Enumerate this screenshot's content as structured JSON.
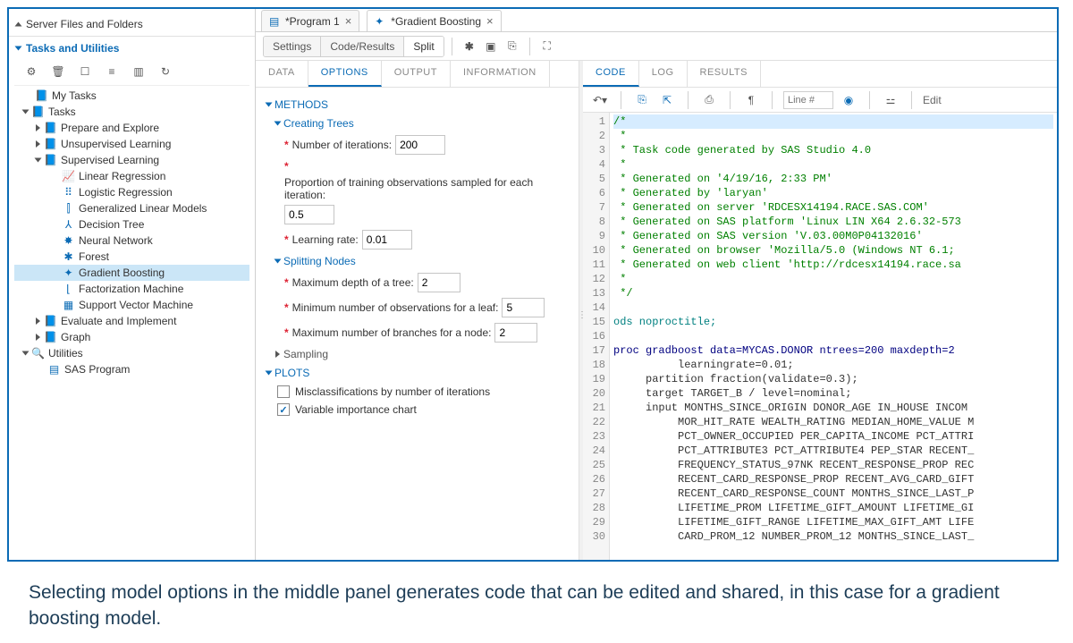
{
  "sidebar": {
    "server_section": "Server Files and Folders",
    "tasks_section": "Tasks and Utilities",
    "toolbar_icons": [
      "settings",
      "trash",
      "properties",
      "list",
      "columns",
      "refresh"
    ],
    "tree": [
      {
        "l": 0,
        "t": "leaf",
        "icon": "folder",
        "label": "My Tasks"
      },
      {
        "l": 0,
        "t": "open",
        "icon": "folder",
        "label": "Tasks"
      },
      {
        "l": 1,
        "t": "closed",
        "icon": "folder",
        "label": "Prepare and Explore"
      },
      {
        "l": 1,
        "t": "closed",
        "icon": "folder",
        "label": "Unsupervised Learning"
      },
      {
        "l": 1,
        "t": "open",
        "icon": "folder",
        "label": "Supervised Learning"
      },
      {
        "l": 2,
        "t": "leaf",
        "icon": "linreg",
        "label": "Linear Regression"
      },
      {
        "l": 2,
        "t": "leaf",
        "icon": "logreg",
        "label": "Logistic Regression"
      },
      {
        "l": 2,
        "t": "leaf",
        "icon": "glm",
        "label": "Generalized Linear Models"
      },
      {
        "l": 2,
        "t": "leaf",
        "icon": "tree",
        "label": "Decision Tree"
      },
      {
        "l": 2,
        "t": "leaf",
        "icon": "nn",
        "label": "Neural Network"
      },
      {
        "l": 2,
        "t": "leaf",
        "icon": "forest",
        "label": "Forest"
      },
      {
        "l": 2,
        "t": "leaf",
        "icon": "gb",
        "label": "Gradient Boosting",
        "selected": true
      },
      {
        "l": 2,
        "t": "leaf",
        "icon": "fm",
        "label": "Factorization Machine"
      },
      {
        "l": 2,
        "t": "leaf",
        "icon": "svm",
        "label": "Support Vector Machine"
      },
      {
        "l": 1,
        "t": "closed",
        "icon": "folder",
        "label": "Evaluate and Implement"
      },
      {
        "l": 1,
        "t": "closed",
        "icon": "folder",
        "label": "Graph"
      },
      {
        "l": 0,
        "t": "open",
        "icon": "util",
        "label": "Utilities"
      },
      {
        "l": 1,
        "t": "leaf",
        "icon": "prog",
        "label": "SAS Program"
      }
    ]
  },
  "tabs": [
    {
      "icon": "prog",
      "label": "*Program 1",
      "active": false
    },
    {
      "icon": "gb",
      "label": "*Gradient Boosting",
      "active": true
    }
  ],
  "view_buttons": {
    "settings": "Settings",
    "code_results": "Code/Results",
    "split": "Split"
  },
  "run_icons": [
    "run",
    "stop",
    "save",
    "export",
    "fullscreen"
  ],
  "options_tabs": [
    "DATA",
    "OPTIONS",
    "OUTPUT",
    "INFORMATION"
  ],
  "options_active": "OPTIONS",
  "methods": {
    "header": "METHODS",
    "creating_trees": {
      "header": "Creating Trees",
      "num_iter": {
        "label": "Number of iterations:",
        "value": "200"
      },
      "prop_train": {
        "label": "Proportion of training observations sampled for each iteration:",
        "value": "0.5"
      },
      "learn_rate": {
        "label": "Learning rate:",
        "value": "0.01"
      }
    },
    "splitting": {
      "header": "Splitting Nodes",
      "max_depth": {
        "label": "Maximum depth of a tree:",
        "value": "2"
      },
      "min_leaf": {
        "label": "Minimum number of observations for a leaf:",
        "value": "5"
      },
      "max_branch": {
        "label": "Maximum number of branches for a node:",
        "value": "2"
      }
    },
    "sampling": {
      "header": "Sampling"
    }
  },
  "plots": {
    "header": "PLOTS",
    "misclass": {
      "label": "Misclassifications by number of iterations",
      "checked": false
    },
    "varimp": {
      "label": "Variable importance chart",
      "checked": true
    }
  },
  "code_tabs": [
    "CODE",
    "LOG",
    "RESULTS"
  ],
  "code_active": "CODE",
  "code_toolbar": {
    "line_ph": "Line #",
    "edit": "Edit"
  },
  "code_lines": [
    {
      "n": 1,
      "type": "comment",
      "txt": "/*",
      "hl": true
    },
    {
      "n": 2,
      "type": "comment",
      "txt": " *"
    },
    {
      "n": 3,
      "type": "comment",
      "txt": " * Task code generated by SAS Studio 4.0"
    },
    {
      "n": 4,
      "type": "comment",
      "txt": " *"
    },
    {
      "n": 5,
      "type": "comment",
      "txt": " * Generated on '4/19/16, 2:33 PM'"
    },
    {
      "n": 6,
      "type": "comment",
      "txt": " * Generated by 'laryan'"
    },
    {
      "n": 7,
      "type": "comment",
      "txt": " * Generated on server 'RDCESX14194.RACE.SAS.COM'"
    },
    {
      "n": 8,
      "type": "comment",
      "txt": " * Generated on SAS platform 'Linux LIN X64 2.6.32-573"
    },
    {
      "n": 9,
      "type": "comment",
      "txt": " * Generated on SAS version 'V.03.00M0P04132016'"
    },
    {
      "n": 10,
      "type": "comment",
      "txt": " * Generated on browser 'Mozilla/5.0 (Windows NT 6.1;"
    },
    {
      "n": 11,
      "type": "comment",
      "txt": " * Generated on web client 'http://rdcesx14194.race.sa"
    },
    {
      "n": 12,
      "type": "comment",
      "txt": " *"
    },
    {
      "n": 13,
      "type": "comment",
      "txt": " */"
    },
    {
      "n": 14,
      "type": "plain",
      "txt": ""
    },
    {
      "n": 15,
      "type": "stmt",
      "txt": "ods noproctitle;"
    },
    {
      "n": 16,
      "type": "plain",
      "txt": ""
    },
    {
      "n": 17,
      "type": "proc",
      "txt": "proc gradboost data=MYCAS.DONOR ntrees=200 maxdepth=2"
    },
    {
      "n": 18,
      "type": "plain",
      "txt": "          learningrate=0.01;"
    },
    {
      "n": 19,
      "type": "plain",
      "txt": "     partition fraction(validate=0.3);"
    },
    {
      "n": 20,
      "type": "plain",
      "txt": "     target TARGET_B / level=nominal;"
    },
    {
      "n": 21,
      "type": "plain",
      "txt": "     input MONTHS_SINCE_ORIGIN DONOR_AGE IN_HOUSE INCOM"
    },
    {
      "n": 22,
      "type": "plain",
      "txt": "          MOR_HIT_RATE WEALTH_RATING MEDIAN_HOME_VALUE M"
    },
    {
      "n": 23,
      "type": "plain",
      "txt": "          PCT_OWNER_OCCUPIED PER_CAPITA_INCOME PCT_ATTRI"
    },
    {
      "n": 24,
      "type": "plain",
      "txt": "          PCT_ATTRIBUTE3 PCT_ATTRIBUTE4 PEP_STAR RECENT_"
    },
    {
      "n": 25,
      "type": "plain",
      "txt": "          FREQUENCY_STATUS_97NK RECENT_RESPONSE_PROP REC"
    },
    {
      "n": 26,
      "type": "plain",
      "txt": "          RECENT_CARD_RESPONSE_PROP RECENT_AVG_CARD_GIFT"
    },
    {
      "n": 27,
      "type": "plain",
      "txt": "          RECENT_CARD_RESPONSE_COUNT MONTHS_SINCE_LAST_P"
    },
    {
      "n": 28,
      "type": "plain",
      "txt": "          LIFETIME_PROM LIFETIME_GIFT_AMOUNT LIFETIME_GI"
    },
    {
      "n": 29,
      "type": "plain",
      "txt": "          LIFETIME_GIFT_RANGE LIFETIME_MAX_GIFT_AMT LIFE"
    },
    {
      "n": 30,
      "type": "plain",
      "txt": "          CARD_PROM_12 NUMBER_PROM_12 MONTHS_SINCE_LAST_"
    }
  ],
  "caption": "Selecting model options in the middle panel generates code that can be edited and shared, in this case for a gradient boosting model.",
  "colors": {
    "accent": "#0b6bb5",
    "required": "#d23",
    "comment": "#008000",
    "keyword": "#000080",
    "selection": "#cbe6f7"
  }
}
